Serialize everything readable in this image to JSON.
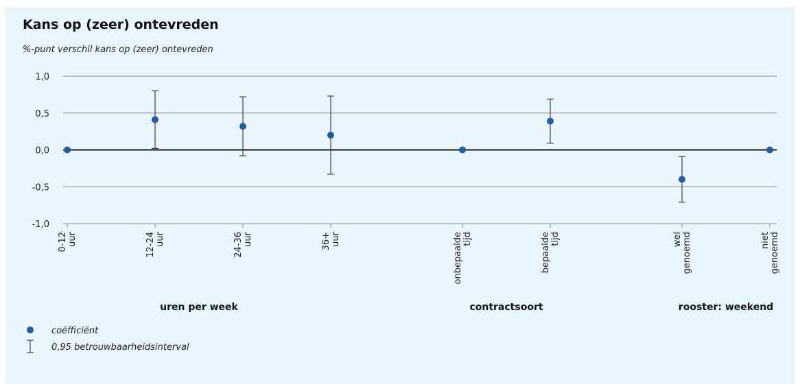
{
  "chart_data": {
    "type": "scatter",
    "title": "Kans op (zeer) ontevreden",
    "ylabel": "%-punt verschil kans op (zeer) ontevreden",
    "ylim": [
      -1.0,
      1.0
    ],
    "yticks": [
      1.0,
      0.5,
      0.0,
      -0.5,
      -1.0
    ],
    "ytick_labels": [
      "1,0",
      "0,5",
      "0,0",
      "-0,5",
      "-1,0"
    ],
    "grid": true,
    "groups": [
      {
        "label": "uren per week",
        "items": [
          "0-12 uur",
          "12-24 uur",
          "24-36 uur",
          "36+ uur"
        ]
      },
      {
        "label": "contractsoort",
        "items": [
          "onbepaalde tijd",
          "bepaalde tijd"
        ]
      },
      {
        "label": "rooster: weekend",
        "items": [
          "wel genoemd",
          "niet genoemd"
        ]
      }
    ],
    "categories": [
      {
        "line1": "0-12",
        "line2": "uur"
      },
      {
        "line1": "12-24",
        "line2": "uur"
      },
      {
        "line1": "24-36",
        "line2": "uur"
      },
      {
        "line1": "36+",
        "line2": "uur"
      },
      {
        "line1": "onbepaalde",
        "line2": "tijd"
      },
      {
        "line1": "bepaalde",
        "line2": "tijd"
      },
      {
        "line1": "wel",
        "line2": "genoemd"
      },
      {
        "line1": "niet",
        "line2": "genoemd"
      }
    ],
    "coefficients": [
      0.0,
      0.41,
      0.32,
      0.2,
      0.0,
      0.39,
      -0.4,
      0.0
    ],
    "ci_lower": [
      null,
      0.02,
      -0.08,
      -0.33,
      null,
      0.09,
      -0.71,
      null
    ],
    "ci_upper": [
      null,
      0.8,
      0.72,
      0.73,
      null,
      0.69,
      -0.09,
      null
    ],
    "legend": {
      "point_label": "coëfficiënt",
      "interval_label": "0,95 betrouwbaarheidsinterval"
    },
    "colors": {
      "point": "#1f5fa8",
      "axis": "#1a1a1a",
      "grid": "#8a8a8a",
      "errorbar": "#222222"
    }
  }
}
